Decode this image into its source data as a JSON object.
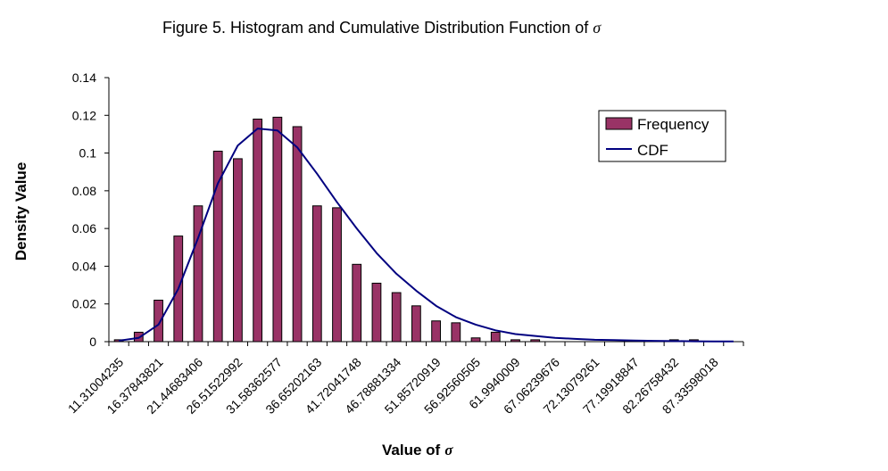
{
  "chart_data": {
    "type": "bar",
    "title_prefix": "Figure 5.  Histogram and Cumulative Distribution Function of",
    "sigma_symbol": "σ",
    "xlabel_prefix": "Value of",
    "ylabel": "Density Value",
    "ylim": [
      0,
      0.14
    ],
    "yticks": [
      "0",
      "0.02",
      "0.04",
      "0.06",
      "0.08",
      "0.1",
      "0.12",
      "0.14"
    ],
    "x_tick_labels": [
      "11.31004235",
      "16.37843821",
      "21.44683406",
      "26.51522992",
      "31.58362577",
      "36.65202163",
      "41.72041748",
      "46.78881334",
      "51.85720919",
      "56.92560505",
      "61.9940009",
      "67.06239676",
      "72.13079261",
      "77.19918847",
      "82.26758432",
      "87.33598018"
    ],
    "series": [
      {
        "name": "Frequency",
        "kind": "bar",
        "color": "#993366",
        "values": [
          0.001,
          0.005,
          0.022,
          0.056,
          0.072,
          0.101,
          0.097,
          0.118,
          0.119,
          0.114,
          0.072,
          0.071,
          0.041,
          0.031,
          0.026,
          0.019,
          0.011,
          0.01,
          0.002,
          0.005,
          0.001,
          0.001,
          0,
          0,
          0,
          0,
          0,
          0,
          0.001,
          0.001,
          0,
          0
        ]
      },
      {
        "name": "CDF",
        "kind": "line",
        "color": "#000080",
        "values": [
          0.0005,
          0.002,
          0.009,
          0.028,
          0.055,
          0.084,
          0.104,
          0.113,
          0.112,
          0.103,
          0.089,
          0.074,
          0.06,
          0.047,
          0.036,
          0.027,
          0.019,
          0.013,
          0.009,
          0.006,
          0.004,
          0.003,
          0.002,
          0.0015,
          0.001,
          0.0008,
          0.0006,
          0.0004,
          0.0003,
          0.0002,
          0.0001,
          0.0001
        ]
      }
    ],
    "legend_position": "top-right",
    "grid": false
  }
}
